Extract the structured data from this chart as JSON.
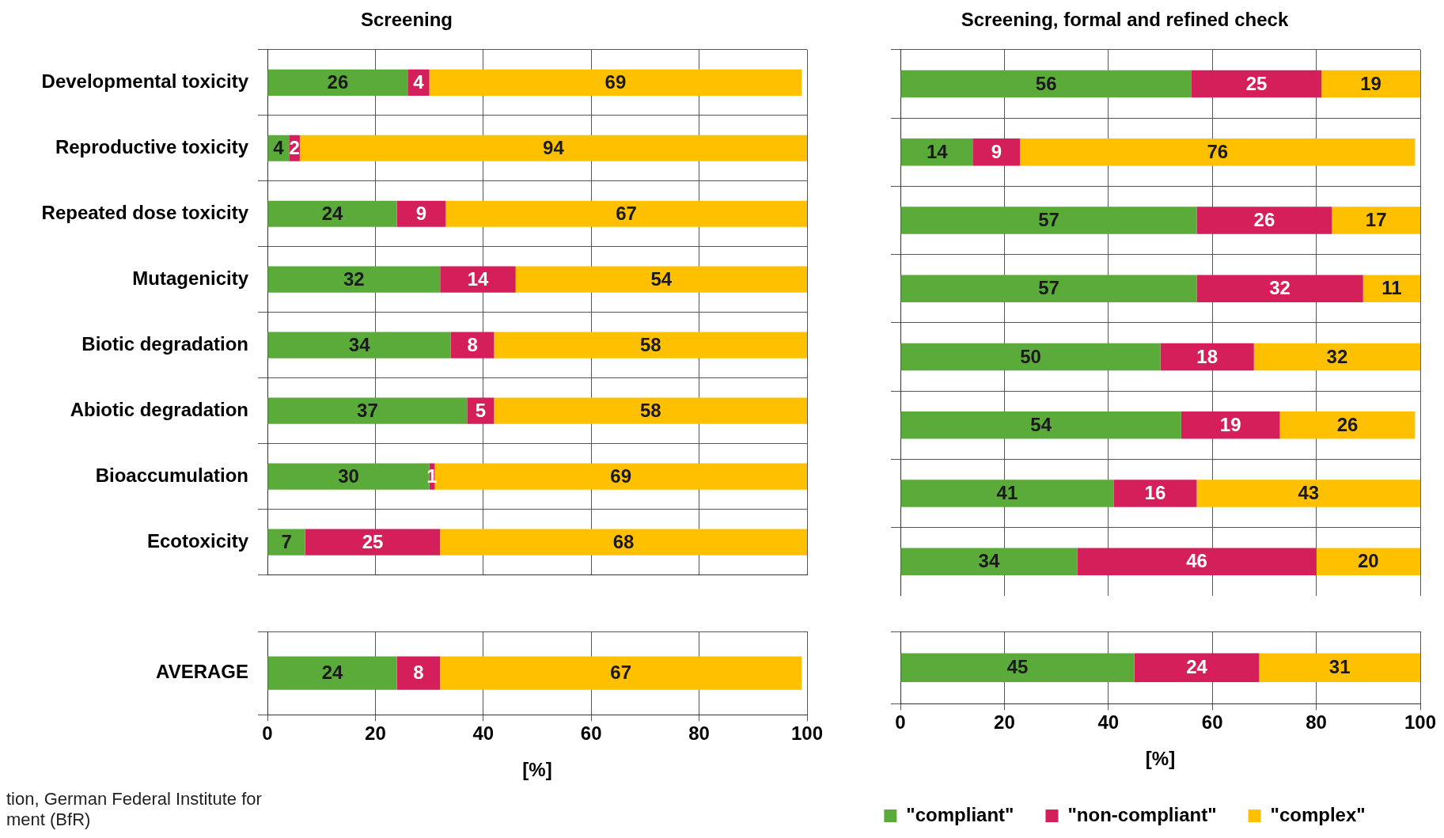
{
  "chart_data": [
    {
      "type": "bar",
      "orientation": "horizontal",
      "stacked": true,
      "title": "Screening",
      "categories": [
        "Developmental toxicity",
        "Reproductive toxicity",
        "Repeated dose toxicity",
        "Mutagenicity",
        "Biotic degradation",
        "Abiotic degradation",
        "Bioaccumulation",
        "Ecotoxicity"
      ],
      "xlim": [
        0,
        100
      ],
      "xticks": [
        0,
        20,
        40,
        60,
        80,
        100
      ],
      "tick_labels": "y",
      "grid": true,
      "data_labels": true,
      "series": [
        {
          "color": "#5aab3a",
          "values": [
            26,
            4,
            24,
            32,
            34,
            37,
            30,
            7
          ]
        },
        {
          "color": "#d41f5a",
          "values": [
            4,
            2,
            9,
            14,
            8,
            5,
            1,
            25
          ]
        },
        {
          "color": "#ffc000",
          "values": [
            69,
            94,
            67,
            54,
            58,
            58,
            69,
            68
          ]
        }
      ]
    },
    {
      "type": "bar",
      "orientation": "horizontal",
      "stacked": true,
      "categories": [
        "AVERAGE"
      ],
      "xlim": [
        0,
        100
      ],
      "xticks": [
        0,
        20,
        40,
        60,
        80,
        100
      ],
      "xlabel": "[%]",
      "grid": true,
      "data_labels": true,
      "annotations": [
        "tion, German Federal Institute for\nment (BfR)"
      ],
      "series": [
        {
          "color": "#5aab3a",
          "values": [
            24
          ]
        },
        {
          "color": "#d41f5a",
          "values": [
            8
          ]
        },
        {
          "color": "#ffc000",
          "values": [
            67
          ]
        }
      ]
    },
    {
      "type": "bar",
      "orientation": "horizontal",
      "stacked": true,
      "title": "Screening, formal and refined check",
      "categories": [
        null,
        null,
        null,
        null,
        null,
        null,
        null,
        null
      ],
      "xlim": [
        0,
        100
      ],
      "xticks": [
        0,
        20,
        40,
        60,
        80,
        100
      ],
      "tick_labels": false,
      "grid": true,
      "data_labels": true,
      "series": [
        {
          "color": "#5aab3a",
          "values": [
            56,
            14,
            57,
            57,
            50,
            54,
            41,
            34
          ]
        },
        {
          "color": "#d41f5a",
          "values": [
            25,
            9,
            26,
            32,
            18,
            19,
            16,
            46
          ]
        },
        {
          "color": "#ffc000",
          "values": [
            19,
            76,
            17,
            11,
            32,
            26,
            43,
            20
          ]
        }
      ]
    },
    {
      "type": "bar",
      "orientation": "horizontal",
      "stacked": true,
      "categories": [
        null
      ],
      "xlim": [
        0,
        100
      ],
      "xticks": [
        0,
        20,
        40,
        60,
        80,
        100
      ],
      "xlabel": "[%]",
      "tick_labels": "x",
      "grid": true,
      "data_labels": true,
      "legend": "bottom",
      "series": [
        {
          "name": "\"compliant\"",
          "color": "#5aab3a",
          "values": [
            45
          ]
        },
        {
          "name": "\"non-compliant\"",
          "color": "#d41f5a",
          "values": [
            24
          ]
        },
        {
          "name": "\"complex\"",
          "color": "#ffc000",
          "values": [
            31
          ]
        }
      ]
    }
  ]
}
